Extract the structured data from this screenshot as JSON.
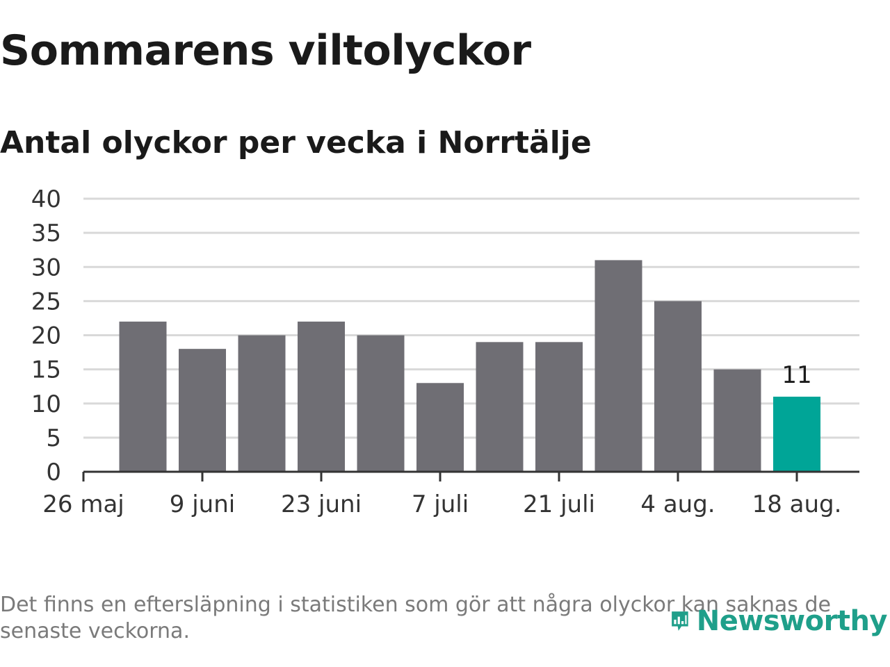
{
  "chart_data": {
    "type": "bar",
    "title": "Sommarens viltolyckor",
    "subtitle": "Antal olyckor per vecka i Norrtälje",
    "y_ticks": [
      "0",
      "5",
      "10",
      "15",
      "20",
      "25",
      "30",
      "35",
      "40"
    ],
    "ylim": [
      0,
      40
    ],
    "x_ticks": [
      "26 maj",
      "9 juni",
      "23 juni",
      "7 juli",
      "21 juli",
      "4 aug.",
      "18 aug."
    ],
    "values": [
      22,
      18,
      20,
      22,
      20,
      13,
      19,
      19,
      31,
      25,
      15,
      11
    ],
    "highlight_index": 11,
    "highlight_label": "11",
    "grid": true,
    "colors": {
      "bar": "#6f6e74",
      "highlight": "#00a597",
      "grid": "#d9d9d9",
      "axis": "#333333"
    }
  },
  "footnote": "Det finns en eftersläpning i statistiken som gör att några olyckor kan saknas de senaste veckorna.",
  "logo": {
    "text": "Newsworthy",
    "icon": "newsworthy-chart-icon",
    "color": "#1f9f8a"
  }
}
